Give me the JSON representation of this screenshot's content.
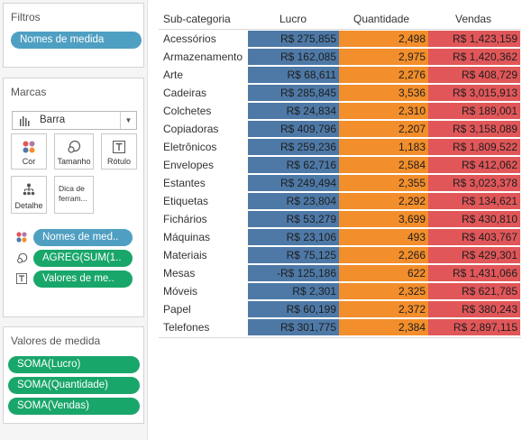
{
  "colors": {
    "lucro": "#4e79a7",
    "quantidade": "#f28e2b",
    "vendas": "#e15759",
    "pill_blue": "#4f9fc2",
    "pill_green": "#19a66a"
  },
  "filters": {
    "title": "Filtros",
    "pills": [
      "Nomes de medida"
    ]
  },
  "marks": {
    "title": "Marcas",
    "mark_type": "Barra",
    "buttons": {
      "color": "Cor",
      "size": "Tamanho",
      "label": "Rótulo",
      "detail": "Detalhe",
      "tooltip_line1": "Dica de",
      "tooltip_line2": "ferram..."
    },
    "shelf": [
      {
        "icon": "color-dots-icon",
        "label": "Nomes de med.."
      },
      {
        "icon": "size-circles-icon",
        "label": "AGREG(SUM(1.."
      },
      {
        "icon": "text-label-icon",
        "label": "Valores de me.."
      }
    ]
  },
  "measure_values": {
    "title": "Valores de medida",
    "pills": [
      "SOMA(Lucro)",
      "SOMA(Quantidade)",
      "SOMA(Vendas)"
    ]
  },
  "table": {
    "headers": {
      "category": "Sub-categoria",
      "lucro": "Lucro",
      "quantidade": "Quantidade",
      "vendas": "Vendas"
    },
    "rows": [
      {
        "cat": "Acessórios",
        "lucro": "R$ 275,855",
        "qtd": "2,498",
        "vendas": "R$ 1,423,159"
      },
      {
        "cat": "Armazenamento",
        "lucro": "R$ 162,085",
        "qtd": "2,975",
        "vendas": "R$ 1,420,362"
      },
      {
        "cat": "Arte",
        "lucro": "R$ 68,611",
        "qtd": "2,276",
        "vendas": "R$ 408,729"
      },
      {
        "cat": "Cadeiras",
        "lucro": "R$ 285,845",
        "qtd": "3,536",
        "vendas": "R$ 3,015,913"
      },
      {
        "cat": "Colchetes",
        "lucro": "R$ 24,834",
        "qtd": "2,310",
        "vendas": "R$ 189,001"
      },
      {
        "cat": "Copiadoras",
        "lucro": "R$ 409,796",
        "qtd": "2,207",
        "vendas": "R$ 3,158,089"
      },
      {
        "cat": "Eletrônicos",
        "lucro": "R$ 259,236",
        "qtd": "1,183",
        "vendas": "R$ 1,809,522"
      },
      {
        "cat": "Envelopes",
        "lucro": "R$ 62,716",
        "qtd": "2,584",
        "vendas": "R$ 412,062"
      },
      {
        "cat": "Estantes",
        "lucro": "R$ 249,494",
        "qtd": "2,355",
        "vendas": "R$ 3,023,378"
      },
      {
        "cat": "Etiquetas",
        "lucro": "R$ 23,804",
        "qtd": "2,292",
        "vendas": "R$ 134,621"
      },
      {
        "cat": "Fichários",
        "lucro": "R$ 53,279",
        "qtd": "3,699",
        "vendas": "R$ 430,810"
      },
      {
        "cat": "Máquinas",
        "lucro": "R$ 23,106",
        "qtd": "493",
        "vendas": "R$ 403,767"
      },
      {
        "cat": "Materiais",
        "lucro": "R$ 75,125",
        "qtd": "2,266",
        "vendas": "R$ 429,301"
      },
      {
        "cat": "Mesas",
        "lucro": "-R$ 125,186",
        "qtd": "622",
        "vendas": "R$ 1,431,066"
      },
      {
        "cat": "Móveis",
        "lucro": "R$ 2,301",
        "qtd": "2,325",
        "vendas": "R$ 621,785"
      },
      {
        "cat": "Papel",
        "lucro": "R$ 60,199",
        "qtd": "2,372",
        "vendas": "R$ 380,243"
      },
      {
        "cat": "Telefones",
        "lucro": "R$ 301,775",
        "qtd": "2,384",
        "vendas": "R$ 2,897,115"
      }
    ]
  }
}
